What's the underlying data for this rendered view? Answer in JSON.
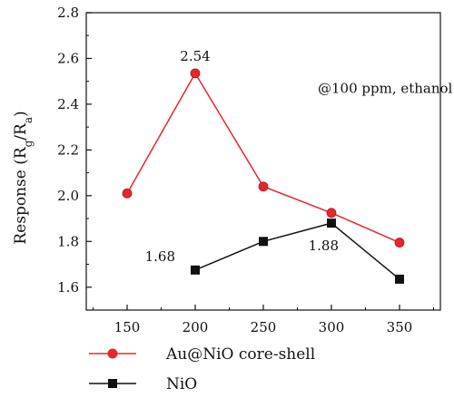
{
  "chart_data": {
    "type": "line",
    "x": [
      150,
      200,
      250,
      300,
      350
    ],
    "xlim": [
      120,
      380
    ],
    "ylim": [
      1.5,
      2.8
    ],
    "xticks": [
      "150",
      "200",
      "250",
      "300",
      "350"
    ],
    "yticks": [
      "1.6",
      "1.8",
      "2.0",
      "2.2",
      "2.4",
      "2.6",
      "2.8"
    ],
    "ylabel": {
      "main": "Response (R",
      "sub1": "g",
      "mid": "/R",
      "sub2": "a",
      "end": ")"
    },
    "xlabel": "",
    "grid": false,
    "legend_position": "bottom",
    "series": [
      {
        "name": "Au@NiO core-shell",
        "x": [
          150,
          200,
          250,
          300,
          350
        ],
        "values": [
          2.01,
          2.535,
          2.04,
          1.925,
          1.795
        ],
        "color": "#e8262d",
        "marker": "circle"
      },
      {
        "name": "NiO",
        "x": [
          200,
          250,
          300,
          350
        ],
        "values": [
          1.675,
          1.8,
          1.88,
          1.635
        ],
        "color": "#111111",
        "marker": "square"
      }
    ],
    "annotations": [
      {
        "text": "2.54",
        "x": 200,
        "y": 2.535
      },
      {
        "text": "1.68",
        "x": 200,
        "y": 1.675
      },
      {
        "text": "1.88",
        "x": 300,
        "y": 1.88
      },
      {
        "text": "@100 ppm, ethanol",
        "x": 300,
        "y": 2.45
      }
    ]
  }
}
